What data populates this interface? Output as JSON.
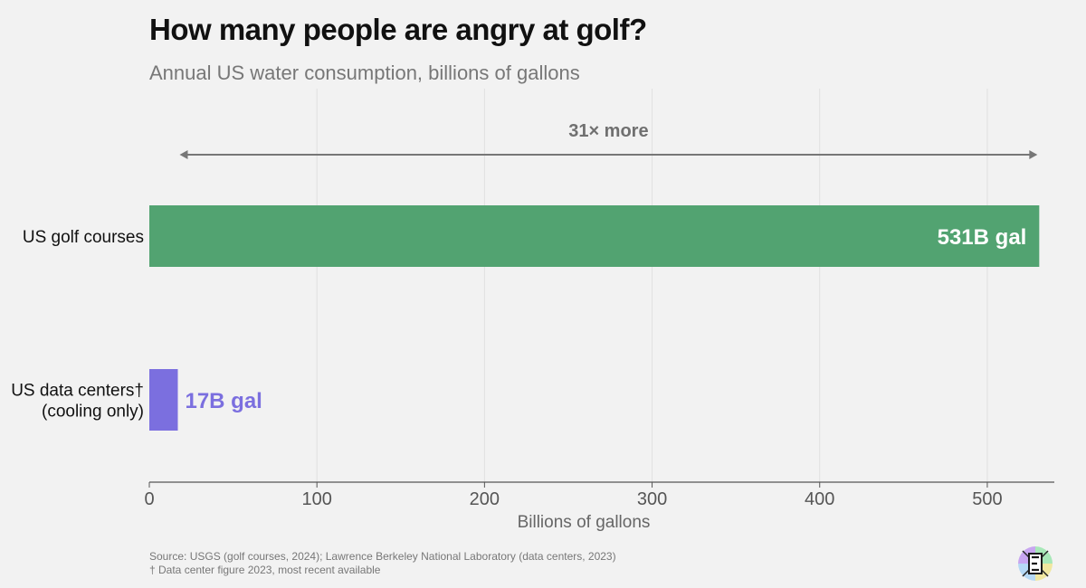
{
  "title": "How many people are angry at golf?",
  "subtitle": "Annual US water consumption, billions of gallons",
  "chart_data": {
    "type": "bar",
    "orientation": "horizontal",
    "categories": [
      [
        "US golf courses"
      ],
      [
        "US data centers†",
        "(cooling only)"
      ]
    ],
    "values": [
      531,
      17
    ],
    "value_labels": [
      "531B gal",
      "17B gal"
    ],
    "colors": [
      "#52a371",
      "#7b6fdf"
    ],
    "xlabel": "Billions of gallons",
    "xlim": [
      0,
      540
    ],
    "xticks": [
      0,
      100,
      200,
      300,
      400,
      500
    ],
    "grid": true,
    "annotation": {
      "text": "31× more",
      "from": 17,
      "to": 531
    }
  },
  "footer": {
    "source": "Source: USGS (golf courses, 2024); Lawrence Berkeley National Laboratory (data centers, 2023)",
    "note": "† Data center figure 2023, most recent available"
  },
  "logo": {
    "icon": "epoch-logo-icon",
    "colors": [
      "#c8a6f0",
      "#a8e8b8",
      "#b6d9f5",
      "#f0e7a0"
    ]
  }
}
